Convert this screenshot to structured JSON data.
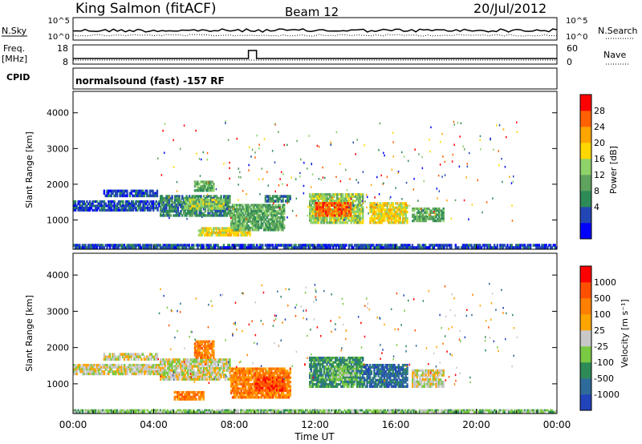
{
  "header": {
    "station": "King Salmon (fitACF)",
    "beam": "Beam 12",
    "date": "20/Jul/2012"
  },
  "strip_panels": {
    "nsky": {
      "left_label": "N.Sky",
      "right_label": "N.Search",
      "left_ticks": [
        "10^5",
        "10^0"
      ],
      "right_ticks": [
        "10^5",
        "10^0"
      ]
    },
    "freq": {
      "left_label_1": "Freq.",
      "left_label_2": "[MHz]",
      "right_label": "Nave",
      "left_ticks": [
        "18",
        "8"
      ],
      "right_ticks": [
        "60",
        "0"
      ],
      "step": {
        "start_hour": 8.7,
        "end_hour": 9.1
      }
    },
    "cpid": {
      "left_label": "CPID",
      "text": "normalsound (fast) -157 RF"
    }
  },
  "chart_data": [
    {
      "type": "heatmap",
      "name": "power",
      "ylabel": "Slant Range [km]",
      "ylim": [
        180,
        4600
      ],
      "yticks": [
        "1000",
        "2000",
        "3000",
        "4000"
      ],
      "xlim": [
        0,
        24
      ],
      "colorbar_label": "Power [dB]",
      "colorbar_ticks": [
        "28",
        "24",
        "20",
        "16",
        "12",
        "8",
        "4"
      ],
      "colors": [
        "#0000ff",
        "#2247b4",
        "#2e8b57",
        "#5fa35f",
        "#8fd26a",
        "#ffd700",
        "#ffa500",
        "#ff6000",
        "#ff0000"
      ],
      "regions": [
        {
          "t": [
            0.0,
            4.3
          ],
          "r": [
            1250,
            1550
          ],
          "level": 1
        },
        {
          "t": [
            1.5,
            4.2
          ],
          "r": [
            1650,
            1850
          ],
          "level": 1
        },
        {
          "t": [
            4.3,
            7.8
          ],
          "r": [
            1100,
            1700
          ],
          "level": 2
        },
        {
          "t": [
            5.5,
            7.5
          ],
          "r": [
            1300,
            1600
          ],
          "level": 4
        },
        {
          "t": [
            6.0,
            7.0
          ],
          "r": [
            1800,
            2100
          ],
          "level": 3
        },
        {
          "t": [
            6.2,
            8.8
          ],
          "r": [
            550,
            800
          ],
          "level": 5
        },
        {
          "t": [
            7.8,
            10.5
          ],
          "r": [
            700,
            1450
          ],
          "level": 3
        },
        {
          "t": [
            9.5,
            10.8
          ],
          "r": [
            1500,
            1700
          ],
          "level": 2
        },
        {
          "t": [
            11.7,
            14.4
          ],
          "r": [
            900,
            1750
          ],
          "level": 4
        },
        {
          "t": [
            12.0,
            13.8
          ],
          "r": [
            1100,
            1500
          ],
          "level": 7
        },
        {
          "t": [
            14.7,
            16.6
          ],
          "r": [
            900,
            1500
          ],
          "level": 5
        },
        {
          "t": [
            16.8,
            18.4
          ],
          "r": [
            950,
            1350
          ],
          "level": 3
        },
        {
          "t": [
            0.0,
            24.0
          ],
          "r": [
            200,
            330
          ],
          "level": 1
        }
      ]
    },
    {
      "type": "heatmap",
      "name": "velocity",
      "ylabel": "Slant Range [km]",
      "xlabel": "Time UT",
      "ylim": [
        180,
        4600
      ],
      "yticks": [
        "1000",
        "2000",
        "3000",
        "4000"
      ],
      "xlim": [
        0,
        24
      ],
      "xticks": [
        "00:00",
        "04:00",
        "08:00",
        "12:00",
        "16:00",
        "20:00",
        "00:00"
      ],
      "colorbar_label": "Velocity [m s⁻¹]",
      "colorbar_ticks": [
        "1000",
        "500",
        "100",
        "25",
        "-25",
        "-100",
        "-500",
        "-1000"
      ],
      "colors": [
        "#2244bb",
        "#2e6b9b",
        "#2e8b57",
        "#7ac943",
        "#c8c8c8",
        "#ffa500",
        "#ff8000",
        "#ff5000",
        "#ff0000"
      ],
      "regions": [
        {
          "t": [
            0.0,
            4.3
          ],
          "r": [
            1250,
            1550
          ],
          "level": 4
        },
        {
          "t": [
            1.5,
            4.2
          ],
          "r": [
            1650,
            1850
          ],
          "level": 4
        },
        {
          "t": [
            4.3,
            7.8
          ],
          "r": [
            1100,
            1700
          ],
          "level": 4
        },
        {
          "t": [
            6.0,
            7.0
          ],
          "r": [
            1700,
            2200
          ],
          "level": 6
        },
        {
          "t": [
            5.0,
            6.5
          ],
          "r": [
            550,
            800
          ],
          "level": 6
        },
        {
          "t": [
            7.8,
            10.8
          ],
          "r": [
            600,
            1450
          ],
          "level": 6
        },
        {
          "t": [
            9.0,
            10.5
          ],
          "r": [
            800,
            1200
          ],
          "level": 7
        },
        {
          "t": [
            11.7,
            14.4
          ],
          "r": [
            900,
            1750
          ],
          "level": 2
        },
        {
          "t": [
            12.8,
            14.0
          ],
          "r": [
            1100,
            1500
          ],
          "level": 3
        },
        {
          "t": [
            14.4,
            16.6
          ],
          "r": [
            900,
            1550
          ],
          "level": 1
        },
        {
          "t": [
            16.8,
            18.4
          ],
          "r": [
            900,
            1400
          ],
          "level": 4
        },
        {
          "t": [
            0.0,
            24.0
          ],
          "r": [
            200,
            300
          ],
          "level": 3
        }
      ]
    }
  ]
}
